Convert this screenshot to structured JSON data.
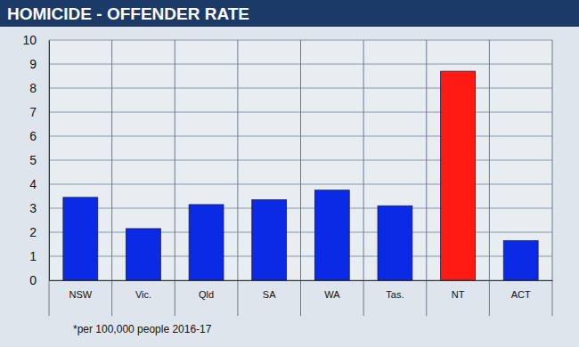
{
  "chart_data": {
    "type": "bar",
    "title": "HOMICIDE - OFFENDER RATE",
    "caption": "*per 100,000 people 2016-17",
    "categories": [
      "NSW",
      "Vic.",
      "Qld",
      "SA",
      "WA",
      "Tas.",
      "NT",
      "ACT"
    ],
    "values": [
      3.45,
      2.15,
      3.15,
      3.35,
      3.75,
      3.1,
      8.7,
      1.65
    ],
    "colors": [
      "#0a2ae6",
      "#0a2ae6",
      "#0a2ae6",
      "#0a2ae6",
      "#0a2ae6",
      "#0a2ae6",
      "#ff1a14",
      "#0a2ae6"
    ],
    "ylim": [
      0,
      10
    ],
    "yticks": [
      0,
      1,
      2,
      3,
      4,
      5,
      6,
      7,
      8,
      9,
      10
    ],
    "grid": true
  }
}
